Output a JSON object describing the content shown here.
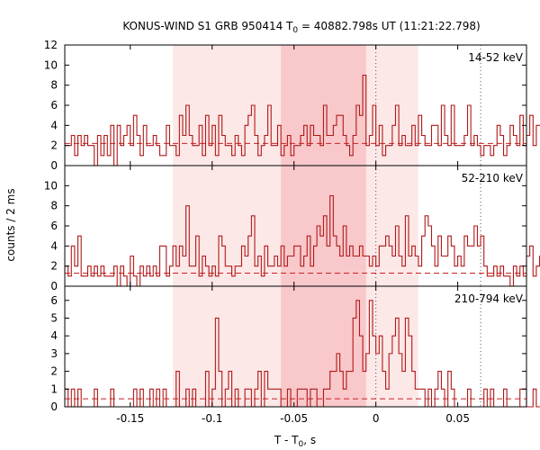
{
  "chart_data": {
    "type": "histogram-stack",
    "title_pre": "KONUS-WIND S1 GRB 950414 T",
    "title_sub": "0",
    "title_post": " = 40882.798s UT (11:21:22.798)",
    "xlabel_pre": "T - T",
    "xlabel_sub": "0",
    "xlabel_post": ", s",
    "ylabel": "counts / 2 ms",
    "x_range": [
      -0.19,
      0.092
    ],
    "x_ticks": [
      -0.15,
      -0.1,
      -0.05,
      0,
      0.05
    ],
    "x_tick_labels": [
      "-0.15",
      "-0.1",
      "-0.05",
      "0",
      "0.05"
    ],
    "bin_width": 0.002,
    "bin_start": -0.19,
    "dotted_lines_x": [
      0,
      0.064
    ],
    "shaded_outer": [
      -0.124,
      0.026
    ],
    "shaded_inner": [
      -0.058,
      -0.006
    ],
    "colors": {
      "hist": "#b01818",
      "bg_line": "#cc2020",
      "shade_outer": "#fde8e8",
      "shade_inner": "#f9c8cb"
    },
    "panels": [
      {
        "label": "14-52 keV",
        "ylim": [
          0,
          12
        ],
        "yticks": [
          0,
          2,
          4,
          6,
          8,
          10,
          12
        ],
        "background": 2.2,
        "values": [
          2,
          2,
          3,
          1,
          3,
          2,
          3,
          2,
          2,
          0,
          3,
          1,
          3,
          1,
          4,
          0,
          4,
          2,
          3,
          4,
          2,
          5,
          3,
          1,
          4,
          2,
          2,
          3,
          2,
          1,
          1,
          4,
          2,
          2,
          1,
          5,
          3,
          6,
          3,
          2,
          2,
          4,
          1,
          5,
          2,
          4,
          1,
          5,
          3,
          2,
          2,
          1,
          3,
          2,
          1,
          4,
          5,
          6,
          3,
          1,
          2,
          3,
          6,
          2,
          2,
          4,
          1,
          2,
          3,
          1,
          2,
          2,
          3,
          4,
          2,
          4,
          3,
          3,
          2,
          6,
          3,
          3,
          4,
          5,
          5,
          3,
          2,
          1,
          3,
          6,
          5,
          9,
          2,
          3,
          6,
          2,
          4,
          1,
          2,
          2,
          4,
          6,
          2,
          3,
          2,
          2,
          4,
          2,
          5,
          3,
          2,
          2,
          4,
          4,
          2,
          6,
          3,
          2,
          6,
          2,
          2,
          2,
          3,
          6,
          2,
          3,
          2,
          1,
          2,
          2,
          1,
          2,
          4,
          3,
          1,
          2,
          4,
          3,
          2,
          5,
          2,
          3,
          5,
          2,
          4,
          4,
          3
        ]
      },
      {
        "label": "52-210 keV",
        "ylim": [
          0,
          12
        ],
        "yticks": [
          0,
          2,
          4,
          6,
          8,
          10
        ],
        "background": 1.3,
        "values": [
          2,
          1,
          4,
          2,
          5,
          1,
          1,
          2,
          1,
          2,
          1,
          2,
          1,
          1,
          1,
          2,
          0,
          2,
          1,
          0,
          3,
          1,
          0,
          2,
          1,
          2,
          1,
          2,
          1,
          4,
          4,
          1,
          2,
          4,
          2,
          4,
          3,
          8,
          2,
          2,
          5,
          1,
          3,
          2,
          1,
          2,
          1,
          5,
          4,
          2,
          2,
          1,
          2,
          2,
          4,
          3,
          5,
          7,
          2,
          3,
          1,
          4,
          2,
          2,
          3,
          2,
          4,
          2,
          3,
          3,
          4,
          4,
          2,
          3,
          5,
          2,
          4,
          6,
          5,
          7,
          4,
          9,
          5,
          4,
          3,
          6,
          3,
          4,
          3,
          3,
          4,
          3,
          3,
          2,
          3,
          2,
          4,
          4,
          5,
          4,
          3,
          6,
          3,
          2,
          7,
          3,
          4,
          3,
          2,
          5,
          7,
          6,
          4,
          2,
          5,
          3,
          3,
          5,
          4,
          2,
          3,
          2,
          5,
          4,
          4,
          6,
          4,
          5,
          2,
          1,
          1,
          2,
          1,
          2,
          1,
          1,
          0,
          2,
          1,
          2,
          1,
          3,
          4,
          1,
          2,
          3,
          7
        ]
      },
      {
        "label": "210-794 keV",
        "ylim": [
          0,
          6.8
        ],
        "yticks": [
          0,
          1,
          2,
          3,
          4,
          5,
          6
        ],
        "background": 0.45,
        "values": [
          1,
          0,
          1,
          0,
          1,
          0,
          0,
          0,
          0,
          1,
          0,
          0,
          0,
          0,
          1,
          0,
          0,
          0,
          0,
          0,
          0,
          1,
          0,
          1,
          0,
          0,
          1,
          0,
          1,
          0,
          1,
          0,
          0,
          0,
          2,
          0,
          0,
          1,
          0,
          1,
          0,
          0,
          0,
          2,
          0,
          1,
          5,
          2,
          0,
          1,
          2,
          0,
          1,
          0,
          0,
          1,
          1,
          0,
          1,
          2,
          0,
          2,
          1,
          1,
          1,
          1,
          0,
          0,
          1,
          0,
          0,
          1,
          1,
          1,
          0,
          1,
          1,
          0,
          0,
          1,
          1,
          2,
          2,
          3,
          2,
          1,
          2,
          2,
          5,
          6,
          4,
          2,
          3,
          6,
          4,
          3,
          4,
          2,
          1,
          3,
          4,
          5,
          3,
          2,
          5,
          4,
          2,
          1,
          1,
          1,
          0,
          1,
          0,
          1,
          2,
          1,
          0,
          2,
          1,
          0,
          0,
          0,
          0,
          1,
          0,
          0,
          0,
          0,
          1,
          0,
          1,
          0,
          0,
          0,
          1,
          0,
          0,
          0,
          0,
          1,
          1,
          0,
          0,
          1,
          0,
          0,
          1
        ]
      }
    ]
  }
}
